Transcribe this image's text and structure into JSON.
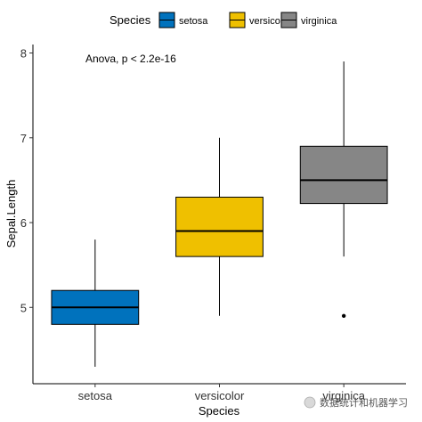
{
  "chart_data": {
    "type": "boxplot",
    "xlabel": "Species",
    "ylabel": "Sepal.Length",
    "categories": [
      "setosa",
      "versicolor",
      "virginica"
    ],
    "ylim": [
      4.1,
      8.1
    ],
    "yticks": [
      5,
      6,
      7,
      8
    ],
    "grid": false,
    "legend": {
      "title": "Species",
      "position": "top",
      "entries": [
        "setosa",
        "versicolor",
        "virginica"
      ]
    },
    "annotation": "Anova, p < 2.2e-16",
    "boxes": [
      {
        "name": "setosa",
        "min": 4.3,
        "q1": 4.8,
        "median": 5.0,
        "q3": 5.2,
        "max": 5.8,
        "outliers": [],
        "color": "#0072BD"
      },
      {
        "name": "versicolor",
        "min": 4.9,
        "q1": 5.6,
        "median": 5.9,
        "q3": 6.3,
        "max": 7.0,
        "outliers": [],
        "color": "#EFC000"
      },
      {
        "name": "virginica",
        "min": 5.6,
        "q1": 6.225,
        "median": 6.5,
        "q3": 6.9,
        "max": 7.9,
        "outliers": [
          4.9
        ],
        "color": "#868686"
      }
    ]
  },
  "watermark": "数据统计和机器学习",
  "watermark_icon": "wechat-icon"
}
